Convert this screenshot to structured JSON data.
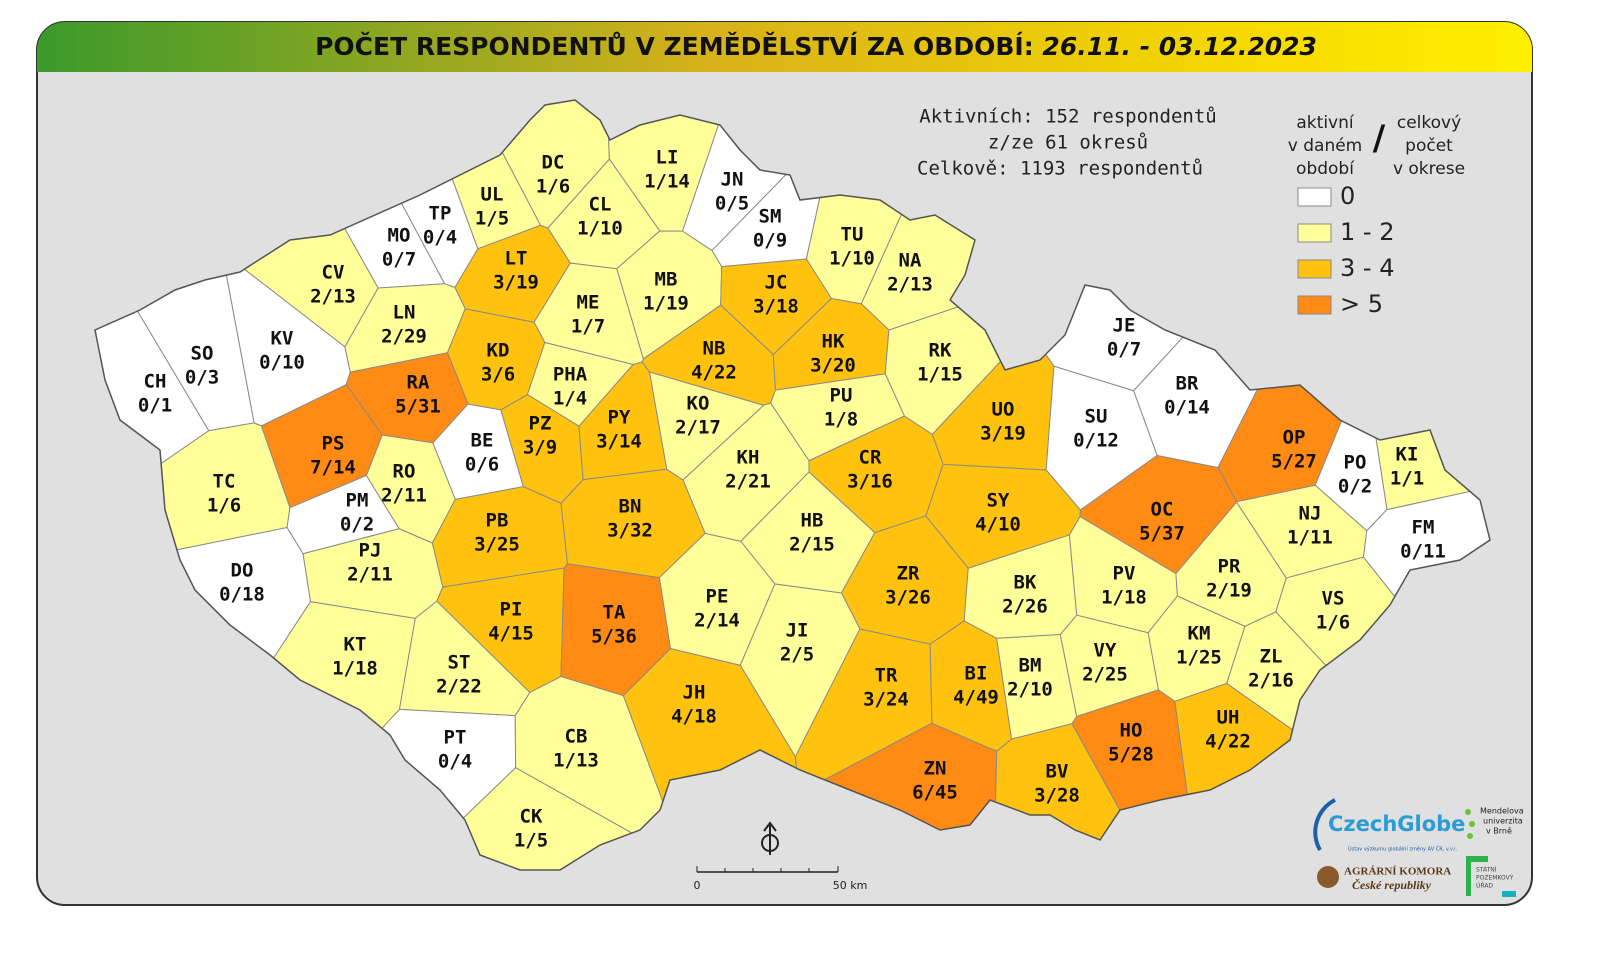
{
  "header": {
    "title": "POČET RESPONDENTŮ V ZEMĚDĚLSTVÍ ZA OBDOBÍ:",
    "period": "26.11. - 03.12.2023"
  },
  "summary": [
    "Aktivních: 152 respondentů",
    "z/ze 61 okresů",
    "Celkově: 1193 respondentů"
  ],
  "legend": {
    "left_heading": [
      "aktivní",
      "v daném",
      "období"
    ],
    "separator": "/",
    "right_heading": [
      "celkový",
      "počet",
      "v okrese"
    ],
    "items": [
      {
        "label": "0",
        "color": "#ffffff"
      },
      {
        "label": "1 - 2",
        "color": "#ffff99"
      },
      {
        "label": "3 - 4",
        "color": "#ffc20e"
      },
      {
        "label": "> 5",
        "color": "#ff8a14"
      }
    ]
  },
  "districts": [
    {
      "code": "DC",
      "label": "1/6",
      "color": "#ffff99"
    },
    {
      "code": "LI",
      "label": "1/14",
      "color": "#ffff99"
    },
    {
      "code": "JN",
      "label": "0/5",
      "color": "#ffffff"
    },
    {
      "code": "UL",
      "label": "1/5",
      "color": "#ffff99"
    },
    {
      "code": "TP",
      "label": "0/4",
      "color": "#ffffff"
    },
    {
      "code": "MO",
      "label": "0/7",
      "color": "#ffffff"
    },
    {
      "code": "CL",
      "label": "1/10",
      "color": "#ffff99"
    },
    {
      "code": "SM",
      "label": "0/9",
      "color": "#ffffff"
    },
    {
      "code": "TU",
      "label": "1/10",
      "color": "#ffff99"
    },
    {
      "code": "NA",
      "label": "2/13",
      "color": "#ffff99"
    },
    {
      "code": "CV",
      "label": "2/13",
      "color": "#ffff99"
    },
    {
      "code": "LT",
      "label": "3/19",
      "color": "#ffc20e"
    },
    {
      "code": "MB",
      "label": "1/19",
      "color": "#ffff99"
    },
    {
      "code": "JC",
      "label": "3/18",
      "color": "#ffc20e"
    },
    {
      "code": "KV",
      "label": "0/10",
      "color": "#ffffff"
    },
    {
      "code": "LN",
      "label": "2/29",
      "color": "#ffff99"
    },
    {
      "code": "ME",
      "label": "1/7",
      "color": "#ffff99"
    },
    {
      "code": "SO",
      "label": "0/3",
      "color": "#ffffff"
    },
    {
      "code": "KD",
      "label": "3/6",
      "color": "#ffc20e"
    },
    {
      "code": "NB",
      "label": "4/22",
      "color": "#ffc20e"
    },
    {
      "code": "HK",
      "label": "3/20",
      "color": "#ffc20e"
    },
    {
      "code": "RK",
      "label": "1/15",
      "color": "#ffff99"
    },
    {
      "code": "JE",
      "label": "0/7",
      "color": "#ffffff"
    },
    {
      "code": "CH",
      "label": "0/1",
      "color": "#ffffff"
    },
    {
      "code": "RA",
      "label": "5/31",
      "color": "#ff8a14"
    },
    {
      "code": "PHA",
      "label": "1/4",
      "color": "#ffff99"
    },
    {
      "code": "BR",
      "label": "0/14",
      "color": "#ffffff"
    },
    {
      "code": "PU",
      "label": "1/8",
      "color": "#ffff99"
    },
    {
      "code": "KO",
      "label": "2/17",
      "color": "#ffff99"
    },
    {
      "code": "UO",
      "label": "3/19",
      "color": "#ffc20e"
    },
    {
      "code": "SU",
      "label": "0/12",
      "color": "#ffffff"
    },
    {
      "code": "PS",
      "label": "7/14",
      "color": "#ff8a14"
    },
    {
      "code": "BE",
      "label": "0/6",
      "color": "#ffffff"
    },
    {
      "code": "PZ",
      "label": "3/9",
      "color": "#ffc20e"
    },
    {
      "code": "PY",
      "label": "3/14",
      "color": "#ffc20e"
    },
    {
      "code": "OP",
      "label": "5/27",
      "color": "#ff8a14"
    },
    {
      "code": "KI",
      "label": "1/1",
      "color": "#ffff99"
    },
    {
      "code": "PO",
      "label": "0/2",
      "color": "#ffffff"
    },
    {
      "code": "TC",
      "label": "1/6",
      "color": "#ffff99"
    },
    {
      "code": "RO",
      "label": "2/11",
      "color": "#ffff99"
    },
    {
      "code": "KH",
      "label": "2/21",
      "color": "#ffff99"
    },
    {
      "code": "CR",
      "label": "3/16",
      "color": "#ffc20e"
    },
    {
      "code": "PM",
      "label": "0/2",
      "color": "#ffffff"
    },
    {
      "code": "SY",
      "label": "4/10",
      "color": "#ffc20e"
    },
    {
      "code": "OC",
      "label": "5/37",
      "color": "#ff8a14"
    },
    {
      "code": "PB",
      "label": "3/25",
      "color": "#ffc20e"
    },
    {
      "code": "BN",
      "label": "3/32",
      "color": "#ffc20e"
    },
    {
      "code": "HB",
      "label": "2/15",
      "color": "#ffff99"
    },
    {
      "code": "NJ",
      "label": "1/11",
      "color": "#ffff99"
    },
    {
      "code": "FM",
      "label": "0/11",
      "color": "#ffffff"
    },
    {
      "code": "PJ",
      "label": "2/11",
      "color": "#ffff99"
    },
    {
      "code": "DO",
      "label": "0/18",
      "color": "#ffffff"
    },
    {
      "code": "ZR",
      "label": "3/26",
      "color": "#ffc20e"
    },
    {
      "code": "BK",
      "label": "2/26",
      "color": "#ffff99"
    },
    {
      "code": "PV",
      "label": "1/18",
      "color": "#ffff99"
    },
    {
      "code": "PR",
      "label": "2/19",
      "color": "#ffff99"
    },
    {
      "code": "VS",
      "label": "1/6",
      "color": "#ffff99"
    },
    {
      "code": "PE",
      "label": "2/14",
      "color": "#ffff99"
    },
    {
      "code": "PI",
      "label": "4/15",
      "color": "#ffc20e"
    },
    {
      "code": "TA",
      "label": "5/36",
      "color": "#ff8a14"
    },
    {
      "code": "JI",
      "label": "2/5",
      "color": "#ffff99"
    },
    {
      "code": "KM",
      "label": "1/25",
      "color": "#ffff99"
    },
    {
      "code": "KT",
      "label": "1/18",
      "color": "#ffff99"
    },
    {
      "code": "ST",
      "label": "2/22",
      "color": "#ffff99"
    },
    {
      "code": "ZL",
      "label": "2/16",
      "color": "#ffff99"
    },
    {
      "code": "BM",
      "label": "2/10",
      "color": "#ffff99"
    },
    {
      "code": "BI",
      "label": "4/49",
      "color": "#ffc20e"
    },
    {
      "code": "VY",
      "label": "2/25",
      "color": "#ffff99"
    },
    {
      "code": "TR",
      "label": "3/24",
      "color": "#ffc20e"
    },
    {
      "code": "JH",
      "label": "4/18",
      "color": "#ffc20e"
    },
    {
      "code": "UH",
      "label": "4/22",
      "color": "#ffc20e"
    },
    {
      "code": "HO",
      "label": "5/28",
      "color": "#ff8a14"
    },
    {
      "code": "PT",
      "label": "0/4",
      "color": "#ffffff"
    },
    {
      "code": "CB",
      "label": "1/13",
      "color": "#ffff99"
    },
    {
      "code": "ZN",
      "label": "6/45",
      "color": "#ff8a14"
    },
    {
      "code": "BV",
      "label": "3/28",
      "color": "#ffc20e"
    },
    {
      "code": "CK",
      "label": "1/5",
      "color": "#ffff99"
    }
  ],
  "scale": {
    "start": "0",
    "end": "50 km"
  },
  "logos": {
    "czechglobe": "CzechGlobe",
    "czechglobe_sub": "Ústav výzkumu globální změny AV ČR, v.v.i.",
    "mendelu": [
      "Mendelova",
      "univerzita",
      "v Brně"
    ],
    "komora": [
      "AGRÁRNÍ KOMORA",
      "České republiky"
    ],
    "spu": [
      "STÁTNÍ",
      "POZEMKOVÝ",
      "ÚŘAD"
    ]
  }
}
